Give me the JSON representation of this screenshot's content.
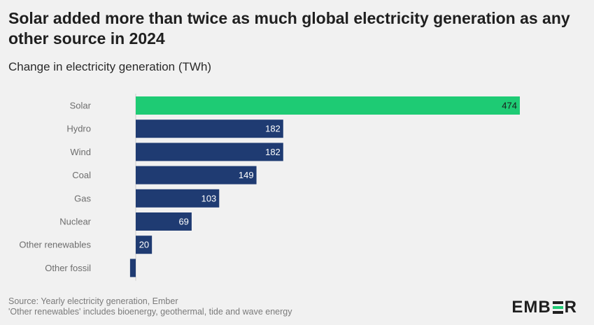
{
  "title": "Solar added more than twice as much global electricity generation as any other source in 2024",
  "subtitle": "Change in electricity generation (TWh)",
  "footer": {
    "line1": "Source: Yearly electricity generation, Ember",
    "line2": "'Other renewables' includes bioenergy, geothermal, tide and wave energy"
  },
  "logo": {
    "part1": "EMB",
    "part2": "R"
  },
  "colors": {
    "highlight": "#1ecb74",
    "bar": "#1f3b72",
    "background": "#f1f1f1"
  },
  "chart_data": {
    "type": "bar",
    "orientation": "horizontal",
    "categories": [
      "Solar",
      "Hydro",
      "Wind",
      "Coal",
      "Gas",
      "Nuclear",
      "Other renewables",
      "Other fossil"
    ],
    "values": [
      474,
      182,
      182,
      149,
      103,
      69,
      20,
      -7
    ],
    "data_labels": [
      "474",
      "182",
      "182",
      "149",
      "103",
      "69",
      "20",
      ""
    ],
    "highlight_category": "Solar",
    "xlim": [
      -7,
      474
    ],
    "grid": false,
    "legend": "none"
  }
}
